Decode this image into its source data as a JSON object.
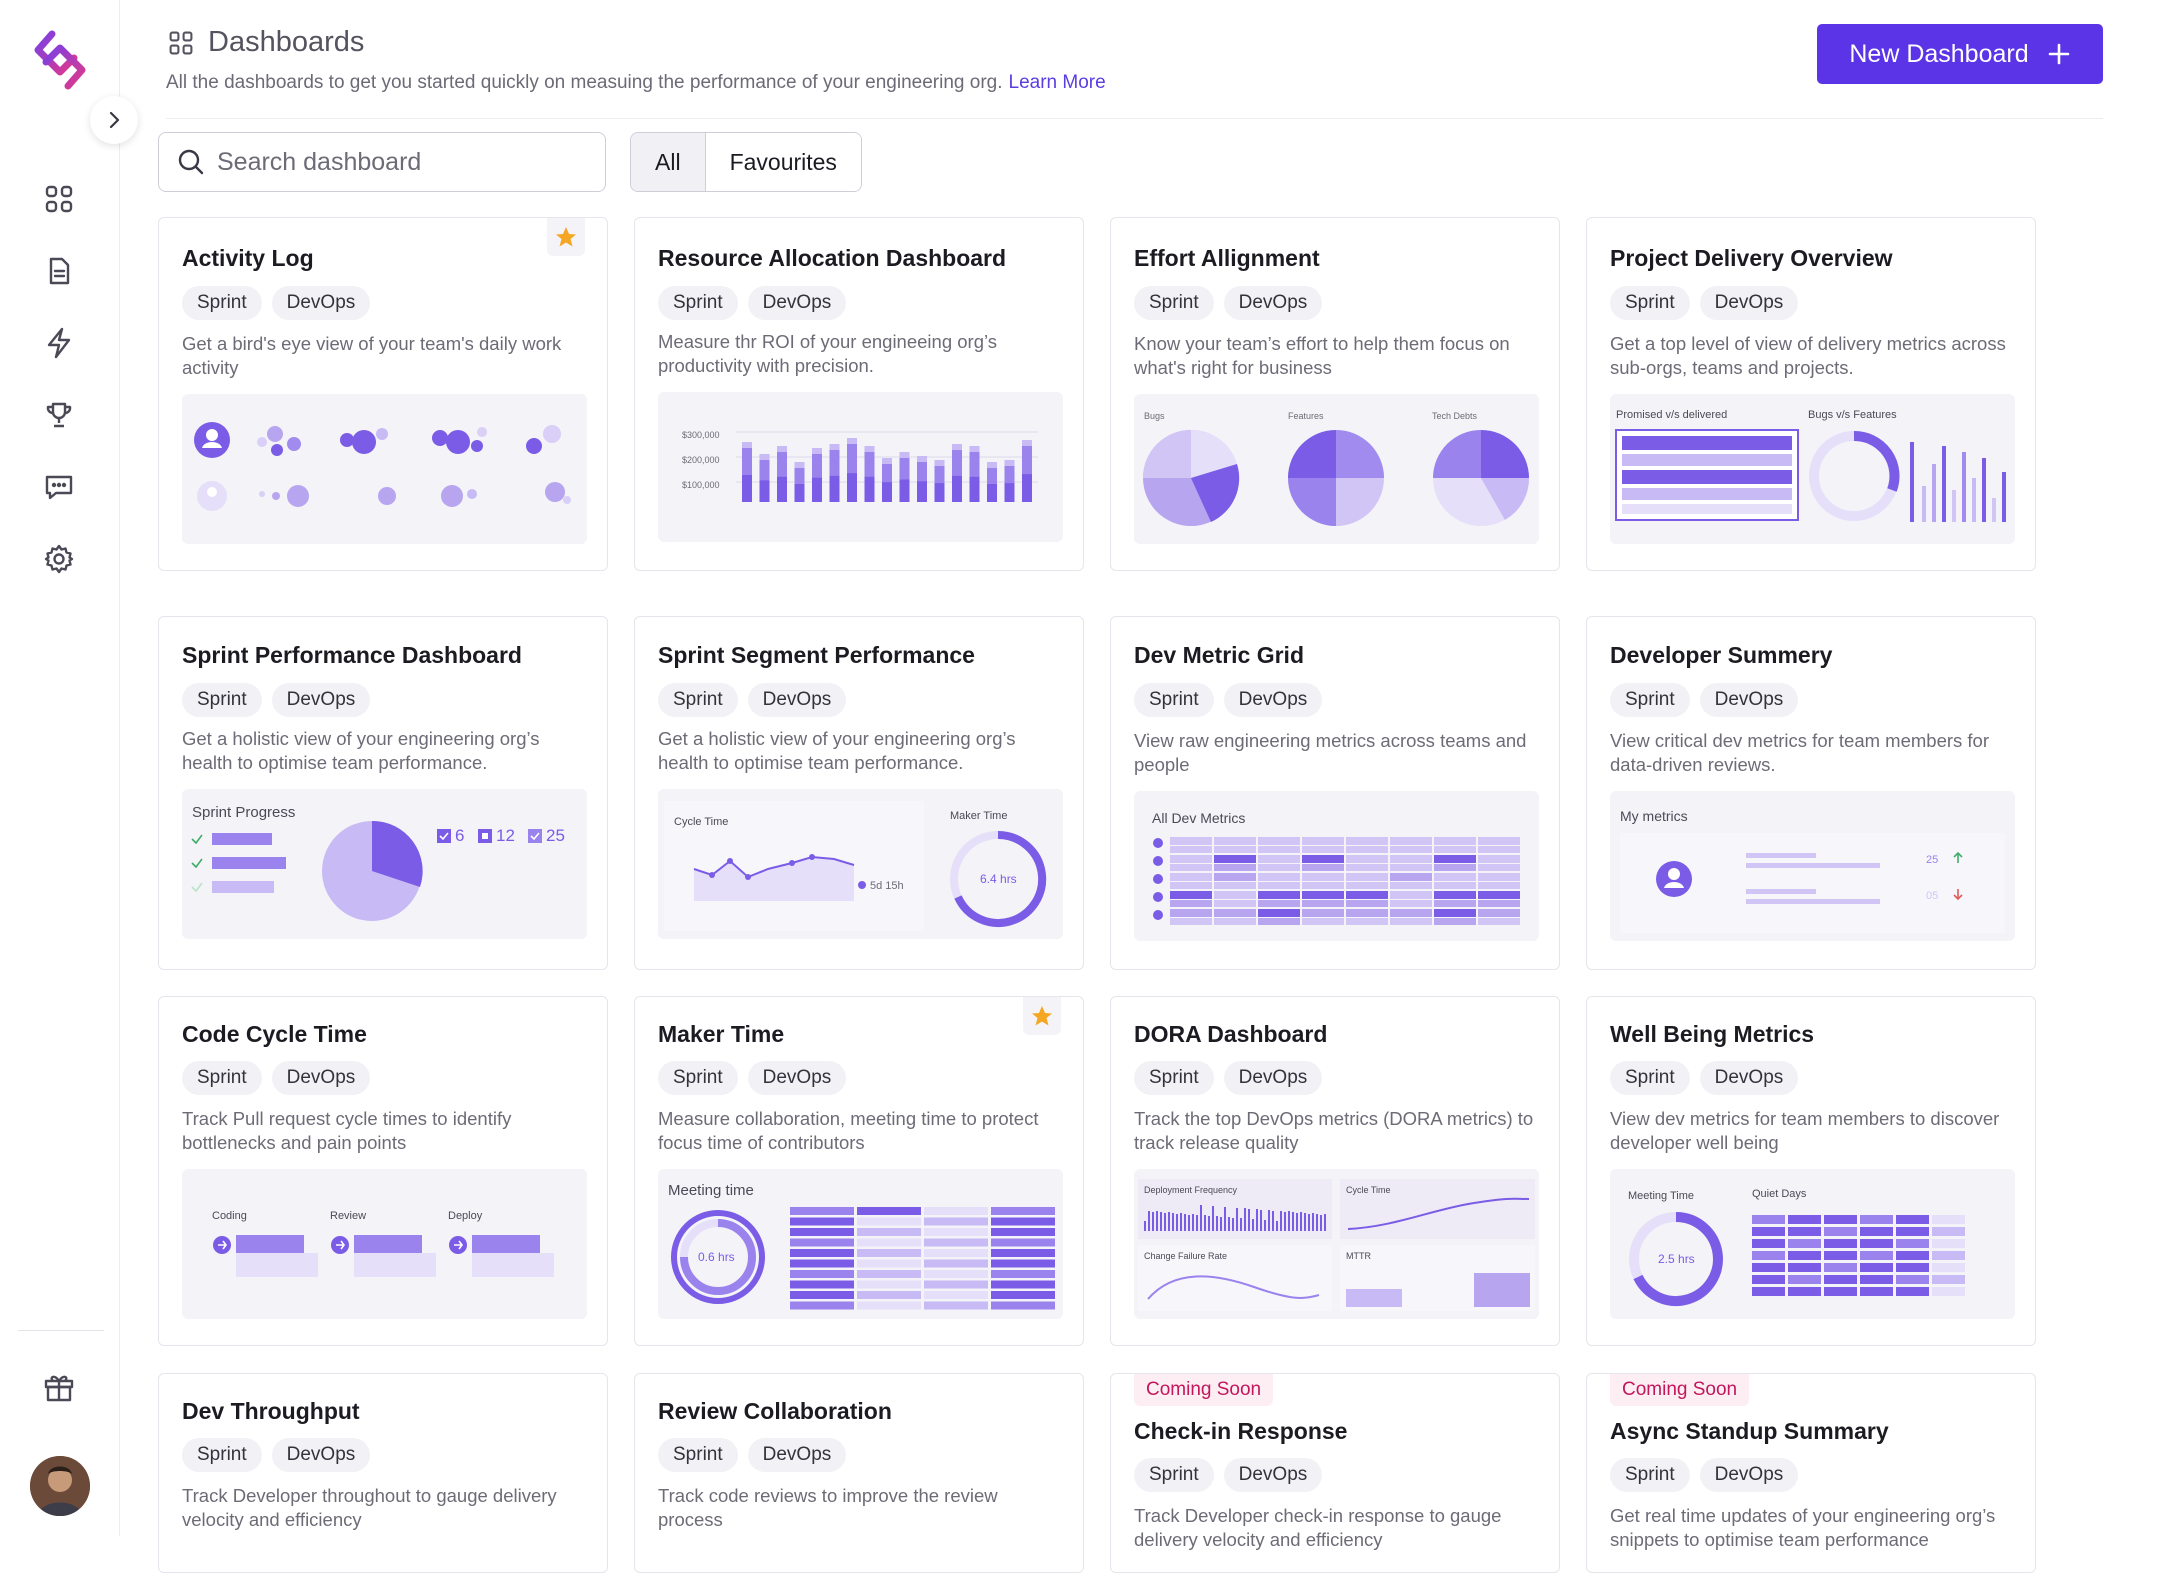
{
  "header": {
    "title": "Dashboards",
    "subtitle": "All the dashboards to get you started quickly on measuing the performance of your engineering org.",
    "learn_more": "Learn More",
    "new_button": "New Dashboard"
  },
  "search": {
    "placeholder": "Search dashboard"
  },
  "filters": {
    "all": "All",
    "favourites": "Favourites"
  },
  "nav_icons": [
    "grid-icon",
    "document-icon",
    "lightning-icon",
    "trophy-icon",
    "chat-icon",
    "gear-icon",
    "gift-icon"
  ],
  "colors": {
    "accent": "#5a34e6",
    "preview_bg": "#f4f3f8",
    "purple": "#7a5ce6",
    "soon": "#c2185b",
    "star": "#f5a623"
  },
  "cards": [
    {
      "title": "Activity Log",
      "tags": [
        "Sprint",
        "DevOps"
      ],
      "desc": "Get a bird's eye view of your team's daily work activity",
      "favourite": true
    },
    {
      "title": "Resource Allocation Dashboard",
      "tags": [
        "Sprint",
        "DevOps"
      ],
      "desc": "Measure thr ROI of your engineeing org’s productivity with precision.",
      "preview": {
        "ticks": [
          "$300,000",
          "$200,000",
          "$100,000"
        ]
      }
    },
    {
      "title": "Effort Allignment",
      "tags": [
        "Sprint",
        "DevOps"
      ],
      "desc": "Know your team’s effort to help them focus on what's right for business",
      "preview": {
        "labels": [
          "Bugs",
          "Features",
          "Tech Debts"
        ]
      }
    },
    {
      "title": "Project Delivery Overview",
      "tags": [
        "Sprint",
        "DevOps"
      ],
      "desc": "Get a top level of view of delivery metrics across sub-orgs, teams and projects.",
      "preview": {
        "labels": [
          "Promised v/s delivered",
          "Bugs v/s Features"
        ]
      }
    },
    {
      "title": "Sprint Performance Dashboard",
      "tags": [
        "Sprint",
        "DevOps"
      ],
      "desc": "Get a holistic view of your engineering org’s health to optimise team performance.",
      "preview": {
        "label": "Sprint Progress",
        "counts": [
          "6",
          "12",
          "25"
        ]
      }
    },
    {
      "title": "Sprint Segment Performance",
      "tags": [
        "Sprint",
        "DevOps"
      ],
      "desc": "Get a holistic view of your engineering org’s health to optimise team performance.",
      "preview": {
        "labels": [
          "Cycle Time",
          "Maker Time"
        ],
        "value1": "5d 15h",
        "value2": "6.4 hrs"
      }
    },
    {
      "title": "Dev Metric Grid",
      "tags": [
        "Sprint",
        "DevOps"
      ],
      "desc": "View raw engineering metrics across teams and people",
      "preview": {
        "label": "All Dev Metrics"
      }
    },
    {
      "title": "Developer Summery",
      "tags": [
        "Sprint",
        "DevOps"
      ],
      "desc": "View critical dev metrics for team members for data-driven reviews.",
      "preview": {
        "label": "My metrics",
        "up": "25",
        "down": "05"
      }
    },
    {
      "title": "Code Cycle Time",
      "tags": [
        "Sprint",
        "DevOps"
      ],
      "desc": "Track Pull request cycle times to identify bottlenecks and pain points",
      "preview": {
        "labels": [
          "Coding",
          "Review",
          "Deploy"
        ]
      }
    },
    {
      "title": "Maker Time",
      "tags": [
        "Sprint",
        "DevOps"
      ],
      "desc": "Measure collaboration, meeting time to protect focus time of contributors",
      "favourite": true,
      "preview": {
        "label": "Meeting time",
        "value": "0.6 hrs"
      }
    },
    {
      "title": "DORA Dashboard",
      "tags": [
        "Sprint",
        "DevOps"
      ],
      "desc": "Track the top DevOps metrics (DORA metrics) to track release quality",
      "preview": {
        "labels": [
          "Deployment Frequency",
          "Cycle Time",
          "Change Failure Rate",
          "MTTR"
        ]
      }
    },
    {
      "title": "Well Being Metrics",
      "tags": [
        "Sprint",
        "DevOps"
      ],
      "desc": "View dev metrics for team members to discover developer well being",
      "preview": {
        "labels": [
          "Meeting Time",
          "Quiet Days"
        ],
        "value": "2.5 hrs"
      }
    },
    {
      "title": "Dev Throughput",
      "tags": [
        "Sprint",
        "DevOps"
      ],
      "desc": "Track Developer throughout to gauge delivery velocity and efficiency"
    },
    {
      "title": "Review Collaboration",
      "tags": [
        "Sprint",
        "DevOps"
      ],
      "desc": "Track code reviews to improve the review process"
    },
    {
      "title": "Check-in Response",
      "tags": [
        "Sprint",
        "DevOps"
      ],
      "desc": "Track Developer check-in response to gauge delivery velocity and efficiency",
      "badge": "Coming Soon"
    },
    {
      "title": "Async Standup Summary",
      "tags": [
        "Sprint",
        "DevOps"
      ],
      "desc": "Get real time updates of your engineering org’s snippets to optimise team performance",
      "badge": "Coming Soon"
    }
  ]
}
